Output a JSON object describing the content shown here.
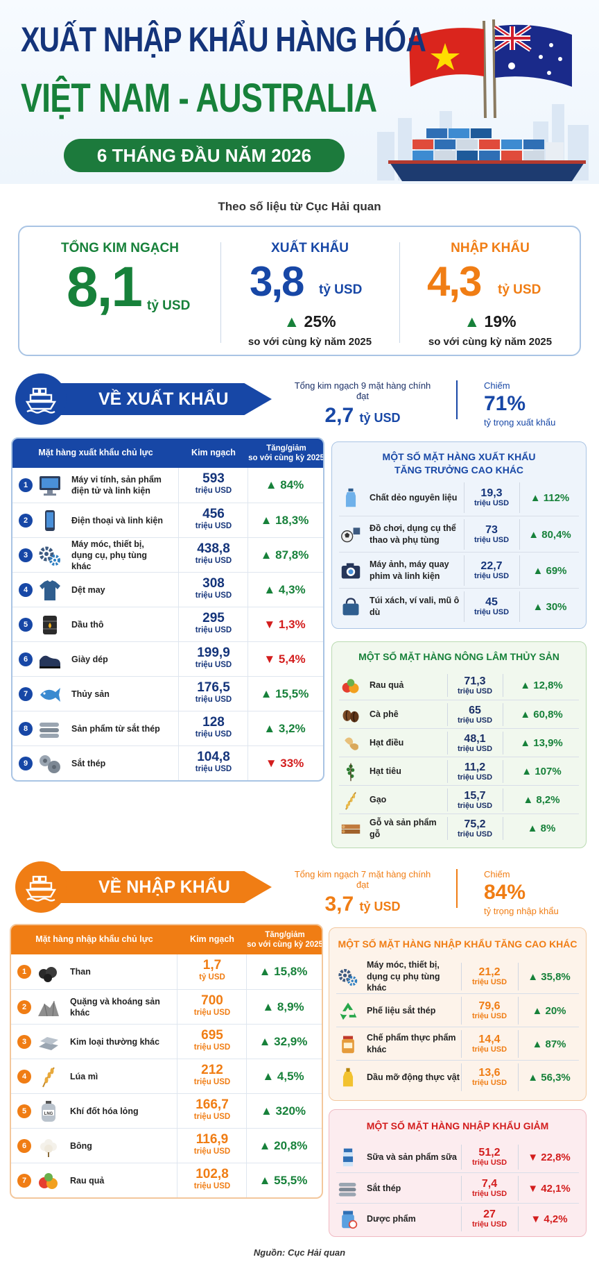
{
  "header": {
    "title_line1": "XUẤT NHẬP KHẨU HÀNG HÓA",
    "title_line2": "VIỆT NAM - AUSTRALIA",
    "period": "6 THÁNG ĐẦU NĂM 2026"
  },
  "subtitle": "Theo số liệu từ Cục Hải quan",
  "summary": {
    "total": {
      "label": "TỔNG KIM NGẠCH",
      "value": "8,1",
      "unit": "tỷ USD"
    },
    "export": {
      "label": "XUẤT KHẨU",
      "value": "3,8",
      "unit": "tỷ USD",
      "change": "25%",
      "note": "so với cùng kỳ năm 2025"
    },
    "import": {
      "label": "NHẬP KHẨU",
      "value": "4,3",
      "unit": "tỷ USD",
      "change": "19%",
      "note": "so với cùng kỳ năm 2025"
    }
  },
  "export_section": {
    "title": "VỀ XUẤT KHẨU",
    "main_label": "Tổng kim ngạch 9 mặt hàng chính đạt",
    "main_value": "2,7",
    "main_unit": "tỷ USD",
    "share_label": "Chiếm",
    "share_value": "71%",
    "share_note": "tỷ trọng xuất khẩu",
    "table": {
      "headers": [
        "Mặt hàng xuất khẩu chủ lực",
        "Kim ngạch",
        "Tăng/giảm\nso với cùng kỳ 2025"
      ],
      "rows": [
        {
          "num": "1",
          "icon": "computer-icon",
          "name": "Máy vi tính, sản phẩm điện tử và linh kiện",
          "value": "593",
          "unit": "triệu USD",
          "dir": "up",
          "change": "84%"
        },
        {
          "num": "2",
          "icon": "phone-icon",
          "name": "Điện thoại và linh kiện",
          "value": "456",
          "unit": "triệu USD",
          "dir": "up",
          "change": "18,3%"
        },
        {
          "num": "3",
          "icon": "gears-icon",
          "name": "Máy móc, thiết bị, dụng cụ, phụ tùng khác",
          "value": "438,8",
          "unit": "triệu USD",
          "dir": "up",
          "change": "87,8%"
        },
        {
          "num": "4",
          "icon": "shirt-icon",
          "name": "Dệt may",
          "value": "308",
          "unit": "triệu USD",
          "dir": "up",
          "change": "4,3%"
        },
        {
          "num": "5",
          "icon": "oil-barrel-icon",
          "name": "Dầu thô",
          "value": "295",
          "unit": "triệu USD",
          "dir": "down",
          "change": "1,3%"
        },
        {
          "num": "6",
          "icon": "shoe-icon",
          "name": "Giày dép",
          "value": "199,9",
          "unit": "triệu USD",
          "dir": "down",
          "change": "5,4%"
        },
        {
          "num": "7",
          "icon": "fish-icon",
          "name": "Thủy sản",
          "value": "176,5",
          "unit": "triệu USD",
          "dir": "up",
          "change": "15,5%"
        },
        {
          "num": "8",
          "icon": "steel-pipes-icon",
          "name": "Sản phẩm từ sắt thép",
          "value": "128",
          "unit": "triệu USD",
          "dir": "up",
          "change": "3,2%"
        },
        {
          "num": "9",
          "icon": "steel-rolls-icon",
          "name": "Sắt thép",
          "value": "104,8",
          "unit": "triệu USD",
          "dir": "down",
          "change": "33%"
        }
      ]
    },
    "other_growth": {
      "title": "MỘT SỐ MẶT HÀNG XUẤT KHẨU\nTĂNG TRƯỞNG CAO KHÁC",
      "rows": [
        {
          "icon": "plastic-bottle-icon",
          "name": "Chất dẻo nguyên liệu",
          "value": "19,3",
          "unit": "triệu USD",
          "dir": "up",
          "change": "112%"
        },
        {
          "icon": "toys-icon",
          "name": "Đồ chơi, dụng cụ thể thao và phụ tùng",
          "value": "73",
          "unit": "triệu USD",
          "dir": "up",
          "change": "80,4%"
        },
        {
          "icon": "camera-icon",
          "name": "Máy ảnh, máy quay phim và linh kiện",
          "value": "22,7",
          "unit": "triệu USD",
          "dir": "up",
          "change": "69%"
        },
        {
          "icon": "handbag-icon",
          "name": "Túi xách, ví vali, mũ ô dù",
          "value": "45",
          "unit": "triệu USD",
          "dir": "up",
          "change": "30%"
        }
      ]
    },
    "agri": {
      "title": "MỘT SỐ MẶT HÀNG NÔNG LÂM THỦY SẢN",
      "rows": [
        {
          "icon": "fruits-icon",
          "name": "Rau quả",
          "value": "71,3",
          "unit": "triệu USD",
          "dir": "up",
          "change": "12,8%"
        },
        {
          "icon": "coffee-beans-icon",
          "name": "Cà phê",
          "value": "65",
          "unit": "triệu USD",
          "dir": "up",
          "change": "60,8%"
        },
        {
          "icon": "cashew-icon",
          "name": "Hạt điều",
          "value": "48,1",
          "unit": "triệu USD",
          "dir": "up",
          "change": "13,9%"
        },
        {
          "icon": "pepper-icon",
          "name": "Hạt tiêu",
          "value": "11,2",
          "unit": "triệu USD",
          "dir": "up",
          "change": "107%"
        },
        {
          "icon": "rice-icon",
          "name": "Gạo",
          "value": "15,7",
          "unit": "triệu USD",
          "dir": "up",
          "change": "8,2%"
        },
        {
          "icon": "wood-icon",
          "name": "Gỗ và sản phẩm gỗ",
          "value": "75,2",
          "unit": "triệu USD",
          "dir": "up",
          "change": "8%"
        }
      ]
    }
  },
  "import_section": {
    "title": "VỀ NHẬP KHẨU",
    "main_label": "Tổng kim ngạch 7 mặt hàng chính đạt",
    "main_value": "3,7",
    "main_unit": "tỷ USD",
    "share_label": "Chiếm",
    "share_value": "84%",
    "share_note": "tỷ trọng nhập khẩu",
    "table": {
      "headers": [
        "Mặt hàng nhập khẩu chủ lực",
        "Kim ngạch",
        "Tăng/giảm\nso với cùng kỳ 2025"
      ],
      "rows": [
        {
          "num": "1",
          "icon": "coal-icon",
          "name": "Than",
          "value": "1,7",
          "unit": "tỷ USD",
          "dir": "up",
          "change": "15,8%"
        },
        {
          "num": "2",
          "icon": "ore-icon",
          "name": "Quặng và khoáng sản khác",
          "value": "700",
          "unit": "triệu USD",
          "dir": "up",
          "change": "8,9%"
        },
        {
          "num": "3",
          "icon": "metal-bars-icon",
          "name": "Kim loại thường khác",
          "value": "695",
          "unit": "triệu USD",
          "dir": "up",
          "change": "32,9%"
        },
        {
          "num": "4",
          "icon": "wheat-icon",
          "name": "Lúa mì",
          "value": "212",
          "unit": "triệu USD",
          "dir": "up",
          "change": "4,5%"
        },
        {
          "num": "5",
          "icon": "lng-tank-icon",
          "name": "Khí đốt hóa lỏng",
          "value": "166,7",
          "unit": "triệu USD",
          "dir": "up",
          "change": "320%"
        },
        {
          "num": "6",
          "icon": "cotton-icon",
          "name": "Bông",
          "value": "116,9",
          "unit": "triệu USD",
          "dir": "up",
          "change": "20,8%"
        },
        {
          "num": "7",
          "icon": "fruits-icon",
          "name": "Rau quả",
          "value": "102,8",
          "unit": "triệu USD",
          "dir": "up",
          "change": "55,5%"
        }
      ]
    },
    "other_growth": {
      "title": "MỘT SỐ MẶT HÀNG NHẬP KHẨU TĂNG CAO KHÁC",
      "rows": [
        {
          "icon": "gears-icon",
          "name": "Máy móc, thiết bị, dụng cụ phụ tùng khác",
          "value": "21,2",
          "unit": "triệu USD",
          "dir": "up",
          "change": "35,8%"
        },
        {
          "icon": "recycle-icon",
          "name": "Phế liệu sắt thép",
          "value": "79,6",
          "unit": "triệu USD",
          "dir": "up",
          "change": "20%"
        },
        {
          "icon": "jar-icon",
          "name": "Chế phẩm thực phẩm khác",
          "value": "14,4",
          "unit": "triệu USD",
          "dir": "up",
          "change": "87%"
        },
        {
          "icon": "oil-bottle-icon",
          "name": "Dầu mỡ động thực vật",
          "value": "13,6",
          "unit": "triệu USD",
          "dir": "up",
          "change": "56,3%"
        }
      ]
    },
    "decline": {
      "title": "MỘT SỐ MẶT HÀNG NHẬP KHẨU GIẢM",
      "rows": [
        {
          "icon": "milk-icon",
          "name": "Sữa và sản phẩm sữa",
          "value": "51,2",
          "unit": "triệu USD",
          "dir": "down",
          "change": "22,8%"
        },
        {
          "icon": "steel-pipes-icon",
          "name": "Sắt thép",
          "value": "7,4",
          "unit": "triệu USD",
          "dir": "down",
          "change": "42,1%"
        },
        {
          "icon": "medicine-icon",
          "name": "Dược phẩm",
          "value": "27",
          "unit": "triệu USD",
          "dir": "down",
          "change": "4,2%"
        }
      ]
    }
  },
  "colors": {
    "navy": "#14347a",
    "green": "#17813a",
    "blue": "#1747a6",
    "orange": "#f07d14",
    "red": "#d31d1d"
  },
  "source": "Nguồn: Cục Hải quan"
}
